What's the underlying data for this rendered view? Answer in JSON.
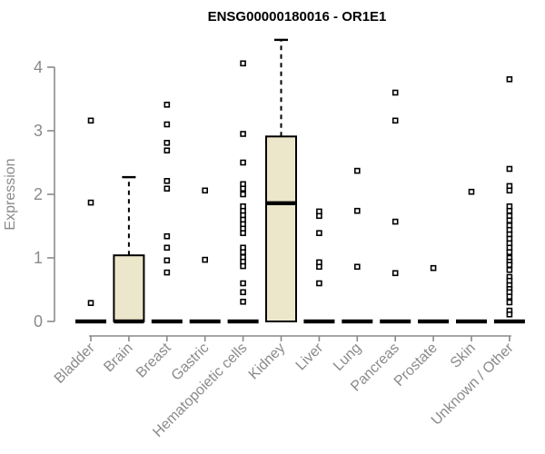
{
  "chart_data": {
    "type": "boxplot",
    "title": "ENSG00000180016 - OR1E1",
    "ylabel": "Expression",
    "xlabel": "",
    "y_ticks": [
      0,
      1,
      2,
      3,
      4
    ],
    "ylim": [
      0,
      4.5
    ],
    "grid": false,
    "legend": false,
    "colors": {
      "box_fill": "#ECE6CA",
      "ink": "#000000",
      "axis": "#8a8a8a"
    },
    "categories": [
      "Bladder",
      "Brain",
      "Breast",
      "Gastric",
      "Hematopoietic cells",
      "Kidney",
      "Liver",
      "Lung",
      "Pancreas",
      "Prostate",
      "Skin",
      "Unknown / Other"
    ],
    "boxes": [
      {
        "category": "Bladder",
        "q1": 0,
        "median": 0,
        "q3": 0,
        "whisker_low": 0,
        "whisker_high": 0,
        "outliers": [
          3.16,
          1.87,
          0.29
        ]
      },
      {
        "category": "Brain",
        "q1": 0,
        "median": 0,
        "q3": 1.04,
        "whisker_low": 0,
        "whisker_high": 2.27,
        "outliers": []
      },
      {
        "category": "Breast",
        "q1": 0,
        "median": 0,
        "q3": 0,
        "whisker_low": 0,
        "whisker_high": 0,
        "outliers": [
          3.41,
          3.1,
          2.81,
          2.69,
          2.21,
          2.09,
          1.34,
          1.16,
          0.96,
          0.77
        ]
      },
      {
        "category": "Gastric",
        "q1": 0,
        "median": 0,
        "q3": 0,
        "whisker_low": 0,
        "whisker_high": 0,
        "outliers": [
          2.06,
          0.97
        ]
      },
      {
        "category": "Hematopoietic cells",
        "q1": 0,
        "median": 0,
        "q3": 0,
        "whisker_low": 0,
        "whisker_high": 0,
        "outliers": [
          4.06,
          2.95,
          2.5,
          2.16,
          2.09,
          2.0,
          1.81,
          1.74,
          1.67,
          1.6,
          1.53,
          1.46,
          1.39,
          1.16,
          1.09,
          1.01,
          0.94,
          0.87,
          0.6,
          0.46,
          0.31
        ]
      },
      {
        "category": "Kidney",
        "q1": 0,
        "median": 1.86,
        "q3": 2.91,
        "whisker_low": 0,
        "whisker_high": 4.43,
        "outliers": []
      },
      {
        "category": "Liver",
        "q1": 0,
        "median": 0,
        "q3": 0,
        "whisker_low": 0,
        "whisker_high": 0,
        "outliers": [
          1.73,
          1.66,
          1.39,
          0.93,
          0.86,
          0.6
        ]
      },
      {
        "category": "Lung",
        "q1": 0,
        "median": 0,
        "q3": 0,
        "whisker_low": 0,
        "whisker_high": 0,
        "outliers": [
          2.37,
          1.74,
          0.86
        ]
      },
      {
        "category": "Pancreas",
        "q1": 0,
        "median": 0,
        "q3": 0,
        "whisker_low": 0,
        "whisker_high": 0,
        "outliers": [
          3.6,
          3.16,
          1.57,
          0.76
        ]
      },
      {
        "category": "Prostate",
        "q1": 0,
        "median": 0,
        "q3": 0,
        "whisker_low": 0,
        "whisker_high": 0,
        "outliers": [
          0.84
        ]
      },
      {
        "category": "Skin",
        "q1": 0,
        "median": 0,
        "q3": 0,
        "whisker_low": 0,
        "whisker_high": 0,
        "outliers": [
          2.04
        ]
      },
      {
        "category": "Unknown / Other",
        "q1": 0,
        "median": 0,
        "q3": 0,
        "whisker_low": 0,
        "whisker_high": 0,
        "outliers": [
          3.81,
          2.4,
          2.13,
          2.06,
          1.81,
          1.74,
          1.66,
          1.59,
          1.51,
          1.44,
          1.37,
          1.3,
          1.23,
          1.16,
          1.09,
          1.0,
          0.94,
          0.89,
          0.81,
          0.7,
          0.64,
          0.57,
          0.51,
          0.46,
          0.39,
          0.3,
          0.17,
          0.11
        ]
      }
    ]
  }
}
